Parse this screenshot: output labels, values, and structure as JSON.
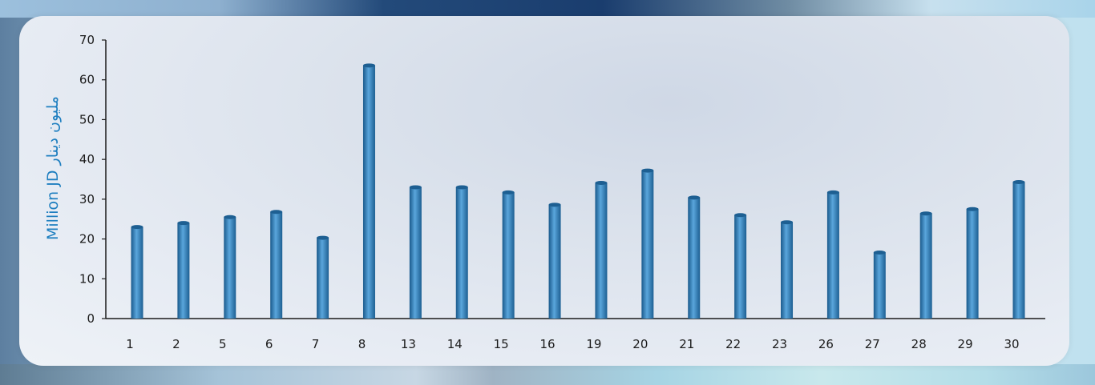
{
  "chart_data": {
    "type": "bar",
    "ylabel": "Million JD مليون دينار",
    "ylim": [
      0,
      70
    ],
    "yticks": [
      0,
      10,
      20,
      30,
      40,
      50,
      60,
      70
    ],
    "categories": [
      "1",
      "2",
      "5",
      "6",
      "7",
      "8",
      "13",
      "14",
      "15",
      "16",
      "19",
      "20",
      "21",
      "22",
      "23",
      "26",
      "27",
      "28",
      "29",
      "30"
    ],
    "values": [
      23,
      24,
      25.5,
      26.8,
      20.3,
      63.6,
      33,
      33,
      31.7,
      28.6,
      34.1,
      37.2,
      30.4,
      26,
      24.2,
      31.7,
      16.6,
      26.4,
      27.5,
      34.3
    ],
    "grid": false,
    "legend": "none",
    "colors": {
      "bar_dark": "#1d5f92",
      "bar_mid": "#3a8fcf",
      "bar_light": "#6fb3e3",
      "axis": "#1b1b1b",
      "label": "#1f7fc0"
    }
  }
}
